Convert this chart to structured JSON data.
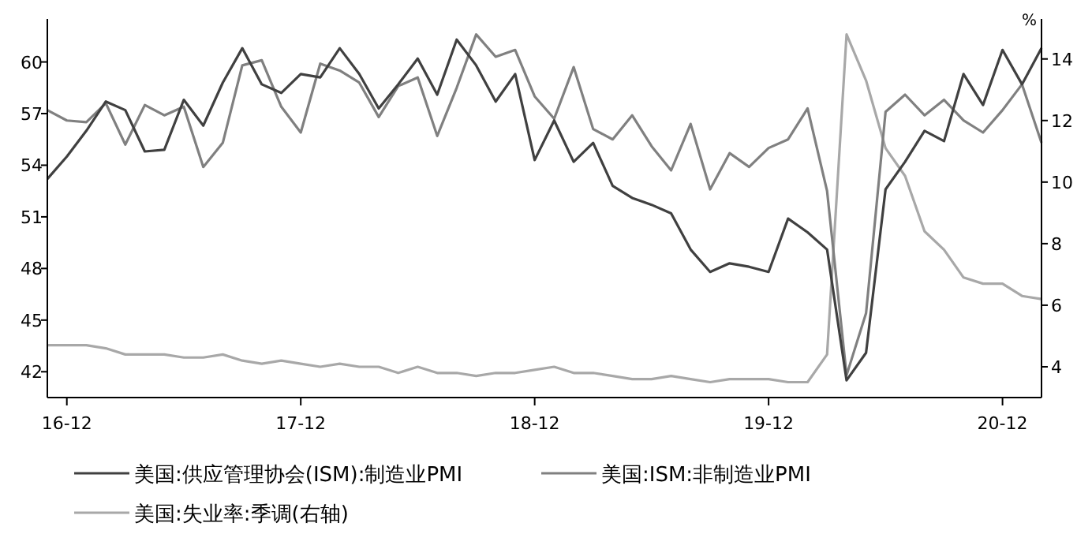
{
  "chart_data": {
    "type": "line",
    "categories": [
      null,
      "16-12",
      null,
      null,
      null,
      null,
      null,
      null,
      null,
      null,
      null,
      null,
      null,
      "17-12",
      null,
      null,
      null,
      null,
      null,
      null,
      null,
      null,
      null,
      null,
      null,
      "18-12",
      null,
      null,
      null,
      null,
      null,
      null,
      null,
      null,
      null,
      null,
      null,
      "19-12",
      null,
      null,
      null,
      null,
      null,
      null,
      null,
      null,
      null,
      null,
      null,
      "20-12",
      null,
      null
    ],
    "series": [
      {
        "name": "美国:供应管理协会(ISM):制造业PMI",
        "color": "#404040",
        "values": [
          53.2,
          54.5,
          56.0,
          57.7,
          57.2,
          54.8,
          54.9,
          57.8,
          56.3,
          58.8,
          60.8,
          58.7,
          58.2,
          59.3,
          59.1,
          60.8,
          59.3,
          57.3,
          58.7,
          60.2,
          58.1,
          61.3,
          59.8,
          57.7,
          59.3,
          54.3,
          56.6,
          54.2,
          55.3,
          52.8,
          52.1,
          51.7,
          51.2,
          49.1,
          47.8,
          48.3,
          48.1,
          47.8,
          50.9,
          50.1,
          49.1,
          41.5,
          43.1,
          52.6,
          54.2,
          56.0,
          55.4,
          59.3,
          57.5,
          60.7,
          58.7,
          60.8
        ]
      },
      {
        "name": "美国:ISM:非制造业PMI",
        "color": "#808080",
        "values": [
          57.2,
          56.6,
          56.5,
          57.6,
          55.2,
          57.5,
          56.9,
          57.4,
          53.9,
          55.3,
          59.8,
          60.1,
          57.4,
          55.9,
          59.9,
          59.5,
          58.8,
          56.8,
          58.6,
          59.1,
          55.7,
          58.5,
          61.6,
          60.3,
          60.7,
          58.0,
          56.7,
          59.7,
          56.1,
          55.5,
          56.9,
          55.1,
          53.7,
          56.4,
          52.6,
          54.7,
          53.9,
          55.0,
          55.5,
          57.3,
          52.5,
          41.8,
          45.4,
          57.1,
          58.1,
          56.9,
          57.8,
          56.6,
          55.9,
          57.2,
          58.7,
          55.3
        ]
      },
      {
        "name": "美国:失业率:季调(右轴)",
        "color": "#a8a8a8",
        "axis": "y2",
        "values": [
          4.7,
          4.7,
          4.7,
          4.6,
          4.4,
          4.4,
          4.4,
          4.3,
          4.3,
          4.4,
          4.2,
          4.1,
          4.2,
          4.1,
          4.0,
          4.1,
          4.0,
          4.0,
          3.8,
          4.0,
          3.8,
          3.8,
          3.7,
          3.8,
          3.8,
          3.9,
          4.0,
          3.8,
          3.8,
          3.7,
          3.6,
          3.6,
          3.7,
          3.6,
          3.5,
          3.6,
          3.6,
          3.6,
          3.5,
          3.5,
          4.4,
          14.8,
          13.3,
          11.1,
          10.2,
          8.4,
          7.8,
          6.9,
          6.7,
          6.7,
          6.3,
          6.2
        ]
      }
    ],
    "ylim": [
      40.5,
      62.5
    ],
    "yticks": [
      42,
      45,
      48,
      51,
      54,
      57,
      60
    ],
    "y2lim": [
      3,
      15.3
    ],
    "y2ticks": [
      4,
      6,
      8,
      10,
      12,
      14
    ],
    "y2label": "%",
    "grid": false,
    "legend": "bottom",
    "marker": "none",
    "line_style": "solid"
  }
}
